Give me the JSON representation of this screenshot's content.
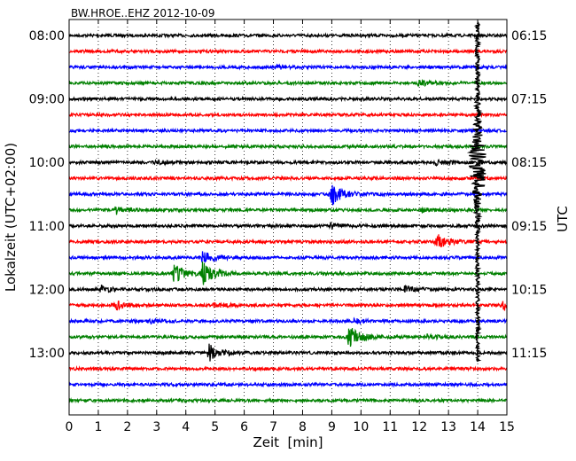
{
  "chart_data": {
    "type": "line",
    "title": "BW.HROE..EHZ 2012-10-09",
    "xlabel": "Zeit  [min]",
    "ylabel_left": "Lokalzeit (UTC+02:00)",
    "ylabel_right": "UTC",
    "xlim": [
      0,
      15
    ],
    "x_ticks": [
      "0",
      "1",
      "2",
      "3",
      "4",
      "5",
      "6",
      "7",
      "8",
      "9",
      "10",
      "11",
      "12",
      "13",
      "14",
      "15"
    ],
    "left_ticks": [
      {
        "row": 0,
        "label": "08:00"
      },
      {
        "row": 4,
        "label": "09:00"
      },
      {
        "row": 8,
        "label": "10:00"
      },
      {
        "row": 12,
        "label": "11:00"
      },
      {
        "row": 16,
        "label": "12:00"
      },
      {
        "row": 20,
        "label": "13:00"
      }
    ],
    "right_ticks": [
      {
        "row": 0,
        "label": "06:15"
      },
      {
        "row": 4,
        "label": "07:15"
      },
      {
        "row": 8,
        "label": "08:15"
      },
      {
        "row": 12,
        "label": "09:15"
      },
      {
        "row": 16,
        "label": "10:15"
      },
      {
        "row": 20,
        "label": "11:15"
      }
    ],
    "trace_colors": [
      "#000000",
      "#ff0000",
      "#0000ff",
      "#008000"
    ],
    "row_count": 24,
    "grid": "vertical dotted at each minute",
    "events": [
      {
        "row": 2,
        "x": 7.1,
        "amp": 0.25
      },
      {
        "row": 3,
        "x": 12.0,
        "amp": 0.4
      },
      {
        "row": 8,
        "x": 3.0,
        "amp": 0.3
      },
      {
        "row": 8,
        "x": 12.6,
        "amp": 0.3
      },
      {
        "row": 10,
        "x": 9.0,
        "amp": 1.8
      },
      {
        "row": 11,
        "x": 1.6,
        "amp": 0.6
      },
      {
        "row": 11,
        "x": 12.1,
        "amp": 0.3
      },
      {
        "row": 12,
        "x": 9.0,
        "amp": 0.4
      },
      {
        "row": 13,
        "x": 12.6,
        "amp": 1.2
      },
      {
        "row": 14,
        "x": 4.6,
        "amp": 1.0
      },
      {
        "row": 15,
        "x": 3.6,
        "amp": 1.4
      },
      {
        "row": 15,
        "x": 4.6,
        "amp": 1.8
      },
      {
        "row": 16,
        "x": 1.1,
        "amp": 0.5
      },
      {
        "row": 16,
        "x": 11.5,
        "amp": 0.5
      },
      {
        "row": 17,
        "x": 1.6,
        "amp": 0.6
      },
      {
        "row": 17,
        "x": 5.0,
        "amp": 0.4
      },
      {
        "row": 17,
        "x": 14.9,
        "amp": 0.8
      },
      {
        "row": 18,
        "x": 2.8,
        "amp": 0.3
      },
      {
        "row": 18,
        "x": 9.8,
        "amp": 0.3
      },
      {
        "row": 19,
        "x": 9.6,
        "amp": 1.6
      },
      {
        "row": 19,
        "x": 12.2,
        "amp": 0.4
      },
      {
        "row": 20,
        "x": 4.8,
        "amp": 1.3
      }
    ],
    "major_event": {
      "x": 14.0,
      "start_row": 0,
      "end_row": 20
    }
  }
}
